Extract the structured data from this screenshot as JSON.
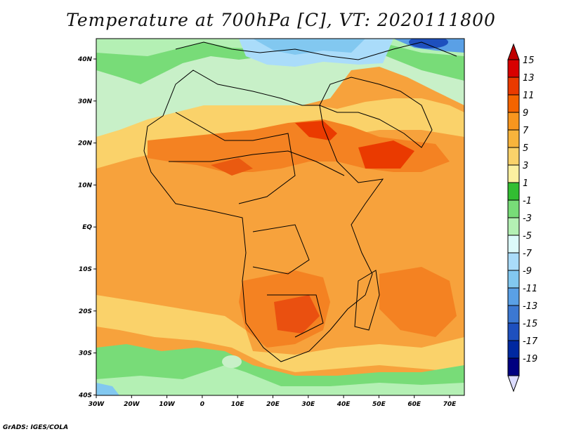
{
  "title": "Temperature at 700hPa [C], VT: 2020111800",
  "credit": "GrADS: IGES/COLA",
  "axes": {
    "lon_labels": [
      "30W",
      "20W",
      "10W",
      "0",
      "10E",
      "20E",
      "30E",
      "40E",
      "50E",
      "60E",
      "70E"
    ],
    "lat_labels": [
      "40N",
      "30N",
      "20N",
      "10N",
      "EQ",
      "10S",
      "20S",
      "30S",
      "40S"
    ]
  },
  "colorbar": {
    "labels": [
      "15",
      "13",
      "11",
      "9",
      "7",
      "5",
      "3",
      "1",
      "-1",
      "-3",
      "-5",
      "-7",
      "-9",
      "-11",
      "-13",
      "-15",
      "-17",
      "-19"
    ],
    "colors": [
      "#d80000",
      "#ea3a00",
      "#f46400",
      "#f8961e",
      "#f8b43c",
      "#fad26a",
      "#fcf0a0",
      "#32be32",
      "#78dc78",
      "#b4f0b4",
      "#dcfafa",
      "#aadcfa",
      "#82c8f0",
      "#5aa0e6",
      "#3c78d2",
      "#1e50be",
      "#0028a0",
      "#000080"
    ],
    "tip_top_color": "#c00000",
    "tip_bottom_color": "#dcdcff"
  }
}
